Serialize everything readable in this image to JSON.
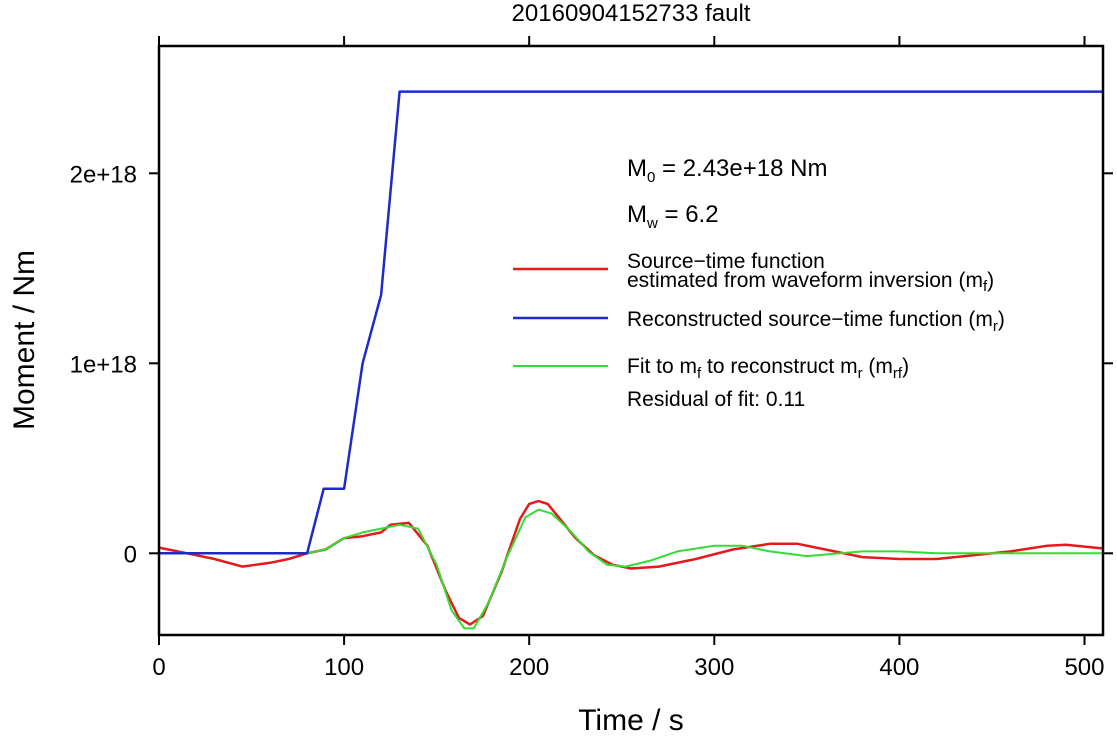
{
  "chart_data": {
    "type": "line",
    "title": "20160904152733 fault",
    "xlabel": "Time / s",
    "ylabel": "Moment / Nm",
    "xlim": [
      0,
      510
    ],
    "ylim": [
      -4.3e+17,
      2.67e+18
    ],
    "xticks": [
      {
        "value": 0,
        "label": "0"
      },
      {
        "value": 100,
        "label": "100"
      },
      {
        "value": 200,
        "label": "200"
      },
      {
        "value": 300,
        "label": "300"
      },
      {
        "value": 400,
        "label": "400"
      },
      {
        "value": 500,
        "label": "500"
      }
    ],
    "yticks": [
      {
        "value": 0,
        "label": "0"
      },
      {
        "value": 1e+18,
        "label": "1e+18"
      },
      {
        "value": 2e+18,
        "label": "2e+18"
      }
    ],
    "grid": false,
    "annotations": {
      "m0": {
        "symbol": "M",
        "sub": "0",
        "text": " = 2.43e+18 Nm"
      },
      "mw": {
        "symbol": "M",
        "sub": "w",
        "text": " = 6.2"
      },
      "residual": "Residual of fit: 0.11"
    },
    "legend": {
      "placement": "center-right",
      "entries": [
        {
          "key": "mf",
          "color": "#e41a1c",
          "line1": "Source−time function",
          "line2_pre": "estimated from waveform inversion (m",
          "line2_sub": "f",
          "line2_post": ")"
        },
        {
          "key": "mr",
          "color": "#1f2bc8",
          "pre": "Reconstructed source−time function (m",
          "sub": "r",
          "post": ")"
        },
        {
          "key": "mrf",
          "color": "#33dd33",
          "pre1": "Fit to m",
          "sub1": "f",
          "mid": " to reconstruct m",
          "sub2": "r",
          "mid2": " (m",
          "sub3": "rf",
          "post": ")"
        }
      ]
    },
    "series": [
      {
        "key": "mf",
        "color": "#e41a1c",
        "x": [
          0,
          10,
          20,
          30,
          45,
          60,
          70,
          80,
          90,
          100,
          110,
          120,
          125,
          135,
          145,
          155,
          162,
          168,
          175,
          185,
          195,
          200,
          205,
          210,
          215,
          225,
          235,
          245,
          255,
          270,
          290,
          310,
          330,
          345,
          360,
          380,
          400,
          420,
          440,
          460,
          480,
          490,
          500,
          510
        ],
        "y": [
          3e+16,
          1e+16,
          -1e+16,
          -3e+16,
          -7e+16,
          -5e+16,
          -3e+16,
          0,
          2e+16,
          8e+16,
          9e+16,
          1.1e+17,
          1.5e+17,
          1.6e+17,
          4e+16,
          -2e+17,
          -3.4e+17,
          -3.75e+17,
          -3.3e+17,
          -1e+17,
          1.8e+17,
          2.6e+17,
          2.75e+17,
          2.6e+17,
          2e+17,
          8e+16,
          -1e+16,
          -6e+16,
          -8e+16,
          -7e+16,
          -3e+16,
          2e+16,
          5e+16,
          5e+16,
          2e+16,
          -2e+16,
          -3e+16,
          -3e+16,
          -1e+16,
          1e+16,
          4e+16,
          4.5e+16,
          3.5e+16,
          2.5e+16
        ]
      },
      {
        "key": "mr",
        "color": "#1f2bc8",
        "x": [
          0,
          80,
          89,
          100,
          110,
          120,
          130,
          510
        ],
        "y": [
          0,
          0,
          3.4e+17,
          3.4e+17,
          1e+18,
          1.36e+18,
          2.43e+18,
          2.43e+18
        ]
      },
      {
        "key": "mrf",
        "color": "#33dd33",
        "x": [
          0,
          80,
          90,
          100,
          110,
          120,
          130,
          140,
          150,
          158,
          165,
          170,
          178,
          188,
          198,
          205,
          212,
          222,
          232,
          242,
          252,
          265,
          280,
          300,
          315,
          330,
          350,
          380,
          400,
          420,
          460,
          510
        ],
        "y": [
          0,
          0,
          2e+16,
          8e+16,
          1.1e+17,
          1.3e+17,
          1.5e+17,
          1.3e+17,
          -6e+16,
          -3e+17,
          -3.95e+17,
          -3.95e+17,
          -2.6e+17,
          -2e+16,
          1.9e+17,
          2.3e+17,
          2.1e+17,
          1.2e+17,
          1e+16,
          -6e+16,
          -7e+16,
          -4e+16,
          1e+16,
          4e+16,
          4e+16,
          1e+16,
          -1.5e+16,
          1e+16,
          1e+16,
          0,
          0,
          0
        ]
      }
    ]
  }
}
